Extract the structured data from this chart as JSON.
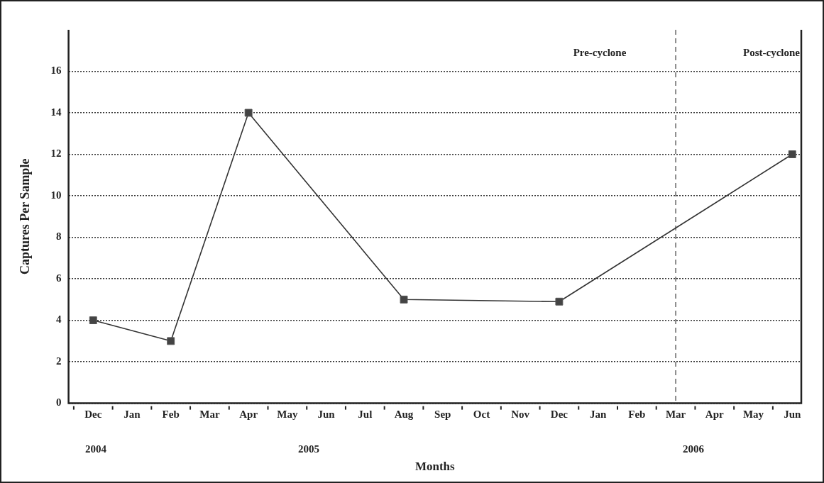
{
  "chart_data": {
    "type": "line",
    "xlabel": "Months",
    "ylabel": "Captures Per Sample",
    "x": [
      "2004-12",
      "2005-02",
      "2005-04",
      "2005-08",
      "2005-12",
      "2006-06"
    ],
    "series": [
      {
        "color": "#333333",
        "values": [
          4,
          3,
          14,
          5,
          4.9,
          12
        ]
      }
    ],
    "xlim": [
      "2004-11-12",
      "2006-06-08"
    ],
    "xticks": [
      {
        "value": "2004-12",
        "label": "Dec"
      },
      {
        "value": "2005-01",
        "label": "Jan"
      },
      {
        "value": "2005-02",
        "label": "Feb"
      },
      {
        "value": "2005-03",
        "label": "Mar"
      },
      {
        "value": "2005-04",
        "label": "Apr"
      },
      {
        "value": "2005-05",
        "label": "May"
      },
      {
        "value": "2005-06",
        "label": "Jun"
      },
      {
        "value": "2005-07",
        "label": "Jul"
      },
      {
        "value": "2005-08",
        "label": "Aug"
      },
      {
        "value": "2005-09",
        "label": "Sep"
      },
      {
        "value": "2005-10",
        "label": "Oct"
      },
      {
        "value": "2005-11",
        "label": "Nov"
      },
      {
        "value": "2005-12",
        "label": "Dec"
      },
      {
        "value": "2006-01",
        "label": "Jan"
      },
      {
        "value": "2006-02",
        "label": "Feb"
      },
      {
        "value": "2006-03",
        "label": "Mar"
      },
      {
        "value": "2006-04",
        "label": "Apr"
      },
      {
        "value": "2006-05",
        "label": "May"
      },
      {
        "value": "2006-06",
        "label": "Jun"
      }
    ],
    "ylim": [
      0,
      18
    ],
    "yticks": [
      0,
      2,
      4,
      6,
      8,
      10,
      12,
      14,
      16
    ],
    "grid": "y",
    "marker": "square",
    "line_style": "solid",
    "ref_lines": [
      {
        "axis": "x",
        "value": "2006-03",
        "color": "#666666",
        "line_style": "dashed"
      }
    ],
    "annotations": [
      "Pre-cyclone",
      "Post-cyclone",
      "2004",
      "2005",
      "2006"
    ]
  }
}
